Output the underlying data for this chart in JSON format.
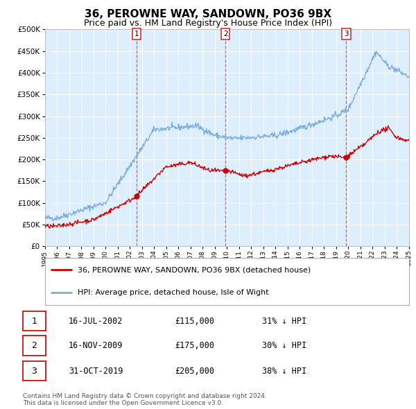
{
  "title": "36, PEROWNE WAY, SANDOWN, PO36 9BX",
  "subtitle": "Price paid vs. HM Land Registry's House Price Index (HPI)",
  "legend_line1": "36, PEROWNE WAY, SANDOWN, PO36 9BX (detached house)",
  "legend_line2": "HPI: Average price, detached house, Isle of Wight",
  "footer1": "Contains HM Land Registry data © Crown copyright and database right 2024.",
  "footer2": "This data is licensed under the Open Government Licence v3.0.",
  "transactions": [
    {
      "num": "1",
      "date": "16-JUL-2002",
      "price": "£115,000",
      "hpi": "31% ↓ HPI",
      "x_year": 2002.54,
      "marker_val": 115000
    },
    {
      "num": "2",
      "date": "16-NOV-2009",
      "price": "£175,000",
      "hpi": "30% ↓ HPI",
      "x_year": 2009.88,
      "marker_val": 175000
    },
    {
      "num": "3",
      "date": "31-OCT-2019",
      "price": "£205,000",
      "hpi": "38% ↓ HPI",
      "x_year": 2019.83,
      "marker_val": 205000
    }
  ],
  "y_lim": [
    0,
    500000
  ],
  "y_ticks": [
    0,
    50000,
    100000,
    150000,
    200000,
    250000,
    300000,
    350000,
    400000,
    450000,
    500000
  ],
  "x_lim_start": 1995,
  "x_lim_end": 2025,
  "red_color": "#cc0000",
  "blue_color": "#7aadde",
  "dashed_color": "#dd4444",
  "bg_plot": "#ddeeff",
  "bg_fig": "#ffffff",
  "grid_color": "#ffffff",
  "title_fontsize": 11,
  "subtitle_fontsize": 9
}
